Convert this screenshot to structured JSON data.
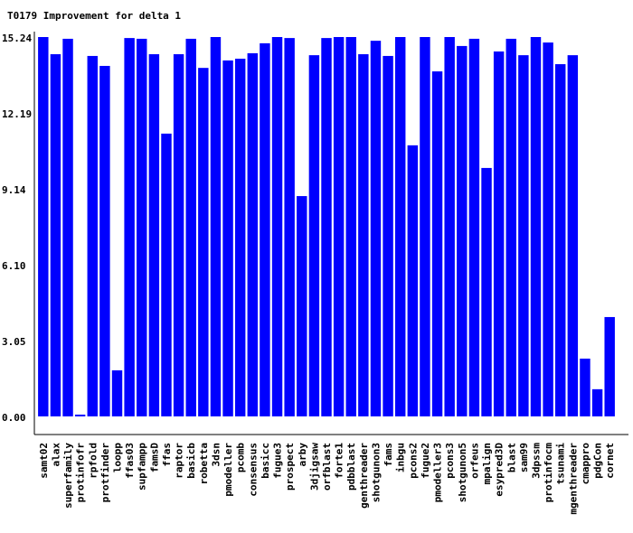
{
  "chart_data": {
    "type": "bar",
    "title": "T0179 Improvement for delta 1",
    "categories": [
      "samt02",
      "alax",
      "superfamily",
      "protinfofr",
      "rpfold",
      "protfinder",
      "loopp",
      "ffas03",
      "supfampp",
      "famsD",
      "ffas",
      "raptor",
      "basicb",
      "robetta",
      "3dsn",
      "pmodeller",
      "pcomb",
      "consensus",
      "basicc",
      "fugue3",
      "prospect",
      "arby",
      "3djigsaw",
      "orfblast",
      "forte1",
      "pdbblast",
      "genthreader",
      "shotgunon3",
      "fams",
      "inbgu",
      "pcons2",
      "fugue2",
      "pmodeller3",
      "pcons3",
      "shotgunon5",
      "orfeus",
      "mpalign",
      "esypred3D",
      "blast",
      "sam99",
      "3dpssm",
      "protinfocm",
      "tsunami",
      "mgenthreader",
      "cmappro",
      "pdgCon",
      "cornet"
    ],
    "values": [
      15.24,
      14.55,
      15.17,
      0.07,
      14.48,
      14.08,
      1.85,
      15.2,
      15.17,
      14.55,
      11.36,
      14.55,
      15.17,
      14.0,
      15.24,
      14.3,
      14.37,
      14.59,
      14.99,
      15.24,
      15.2,
      8.85,
      14.51,
      15.2,
      15.24,
      15.24,
      14.55,
      15.09,
      14.48,
      15.24,
      10.89,
      15.24,
      13.86,
      15.24,
      14.88,
      15.17,
      9.98,
      14.66,
      15.17,
      14.51,
      15.24,
      15.02,
      14.15,
      14.51,
      2.32,
      1.09,
      3.99
    ],
    "color": "#0000ff",
    "ylim": [
      -0.73,
      15.24
    ],
    "yticks": [
      {
        "value": 0,
        "label": "0.00"
      },
      3.05,
      {
        "value": 6.1,
        "label": "6.10"
      },
      9.14,
      12.19,
      15.24
    ],
    "grid": false
  }
}
